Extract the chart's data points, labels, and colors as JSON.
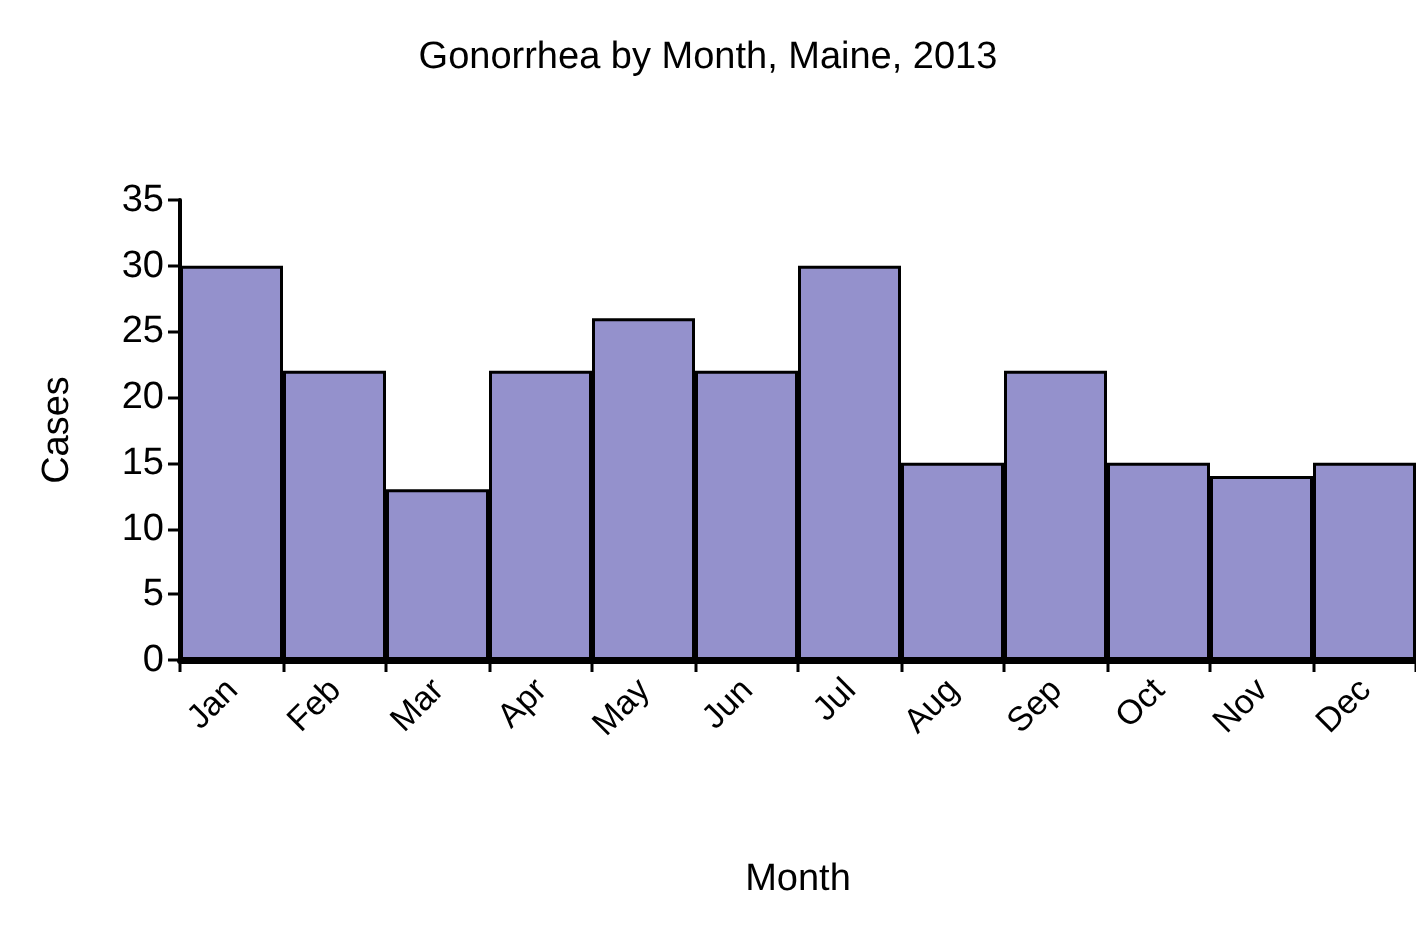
{
  "chart_data": {
    "type": "bar",
    "title": "Gonorrhea by Month, Maine, 2013",
    "xlabel": "Month",
    "ylabel": "Cases",
    "categories": [
      "Jan",
      "Feb",
      "Mar",
      "Apr",
      "May",
      "Jun",
      "Jul",
      "Aug",
      "Sep",
      "Oct",
      "Nov",
      "Dec"
    ],
    "values": [
      30,
      22,
      13,
      22,
      26,
      22,
      30,
      15,
      22,
      15,
      14,
      15
    ],
    "color": "#9491cc",
    "ylim": [
      0,
      35
    ],
    "yticks": [
      0,
      5,
      10,
      15,
      20,
      25,
      30,
      35
    ]
  }
}
